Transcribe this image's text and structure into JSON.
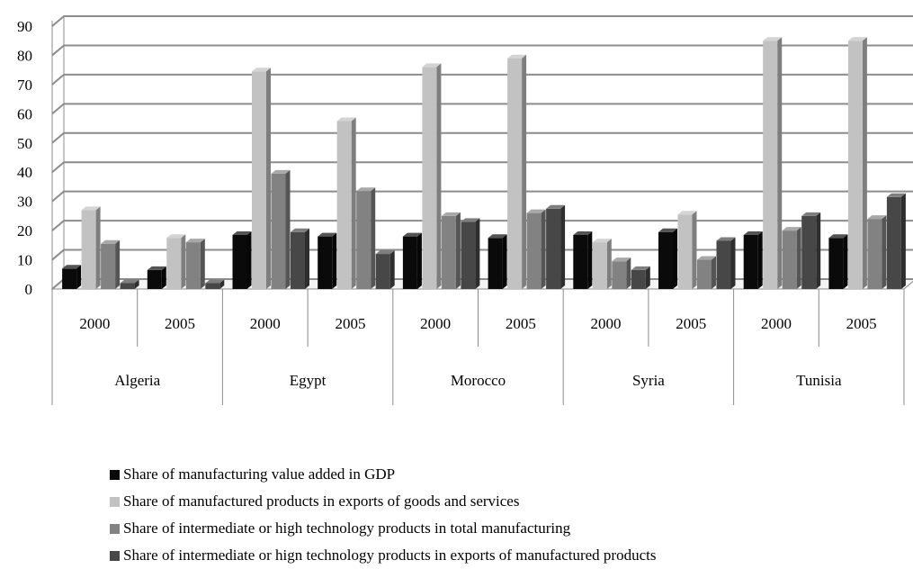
{
  "chart_data": {
    "type": "bar",
    "countries": [
      "Algeria",
      "Egypt",
      "Morocco",
      "Syria",
      "Tunisia"
    ],
    "years": [
      "2000",
      "2005"
    ],
    "categories": [
      "Algeria 2000",
      "Algeria 2005",
      "Egypt 2000",
      "Egypt 2005",
      "Morocco 2000",
      "Morocco 2005",
      "Syria 2000",
      "Syria 2005",
      "Tunisia 2000",
      "Tunisia 2005"
    ],
    "series": [
      {
        "name": "Share of manufacturing value added in GDP",
        "color": "#0a0a0a",
        "values": [
          7,
          6.5,
          18.5,
          18,
          18,
          17.5,
          18.5,
          19.5,
          18.5,
          17.5
        ]
      },
      {
        "name": "Share of manufactured products in exports of goods and services",
        "color": "#c2c2c2",
        "values": [
          27,
          17.5,
          74.5,
          57.5,
          76,
          79,
          16,
          25.5,
          85,
          85
        ]
      },
      {
        "name": "Share of intermediate or high technology products in total manufacturing",
        "color": "#828282",
        "values": [
          15.5,
          16,
          39.5,
          33.5,
          25,
          26,
          9.5,
          10,
          20,
          24
        ]
      },
      {
        "name": "Share of intermediate or hign technology products in exports of manufactured products",
        "color": "#474747",
        "values": [
          2,
          2,
          19.5,
          12,
          23,
          27.5,
          6.5,
          16.5,
          25,
          31.5
        ]
      }
    ],
    "ylim": [
      0,
      90
    ],
    "yticks": [
      "0",
      "10",
      "20",
      "30",
      "40",
      "50",
      "60",
      "70",
      "80",
      "90"
    ],
    "grid": true,
    "legend_position": "bottom",
    "title": "",
    "xlabel": "",
    "ylabel": ""
  }
}
